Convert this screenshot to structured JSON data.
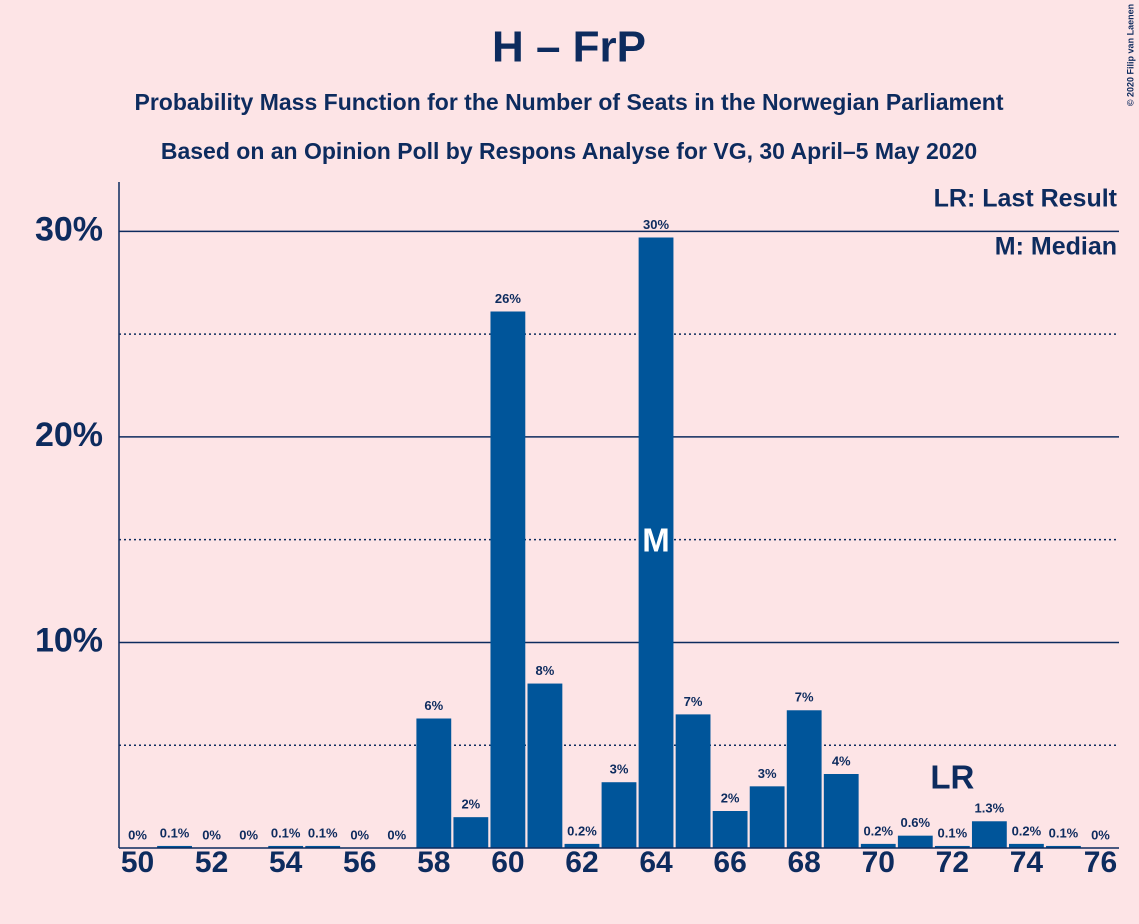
{
  "chart_data": {
    "type": "bar",
    "title": "H – FrP",
    "subtitle": "Probability Mass Function for the Number of Seats in the Norwegian Parliament",
    "subtitle2": "Based on an Opinion Poll by Respons Analyse for VG, 30 April–5 May 2020",
    "credit": "© 2020 Filip van Laenen",
    "legend": [
      "LR: Last Result",
      "M: Median"
    ],
    "x": [
      50,
      51,
      52,
      53,
      54,
      55,
      56,
      57,
      58,
      59,
      60,
      61,
      62,
      63,
      64,
      65,
      66,
      67,
      68,
      69,
      70,
      71,
      72,
      73,
      74,
      75,
      76
    ],
    "values": [
      0,
      0.1,
      0,
      0,
      0.1,
      0.1,
      0,
      0,
      6.3,
      1.5,
      26.1,
      8.0,
      0.2,
      3.2,
      29.7,
      6.5,
      1.8,
      3.0,
      6.7,
      3.6,
      0.2,
      0.6,
      0.1,
      1.3,
      0.2,
      0.1,
      0
    ],
    "value_labels": [
      "0%",
      "0.1%",
      "0%",
      "0%",
      "0.1%",
      "0.1%",
      "0%",
      "0%",
      "6%",
      "2%",
      "26%",
      "8%",
      "0.2%",
      "3%",
      "30%",
      "7%",
      "2%",
      "3%",
      "7%",
      "4%",
      "0.2%",
      "0.6%",
      "0.1%",
      "1.3%",
      "0.2%",
      "0.1%",
      "0%"
    ],
    "color": "#00559a",
    "xlim": [
      49.5,
      76.5
    ],
    "xticks": [
      50,
      52,
      54,
      56,
      58,
      60,
      62,
      64,
      66,
      68,
      70,
      72,
      74,
      76
    ],
    "ylim": [
      0,
      32.4
    ],
    "yticks": [
      {
        "value": 10,
        "label": "10%"
      },
      {
        "value": 20,
        "label": "20%"
      },
      {
        "value": 30,
        "label": "30%"
      }
    ],
    "minor_grid": [
      5,
      15,
      25
    ],
    "grid": true,
    "annotations": [
      {
        "label": "M",
        "x": 64,
        "color": "#ffffff"
      },
      {
        "label": "LR",
        "x": 72,
        "color": "#0d2b5e"
      }
    ]
  }
}
